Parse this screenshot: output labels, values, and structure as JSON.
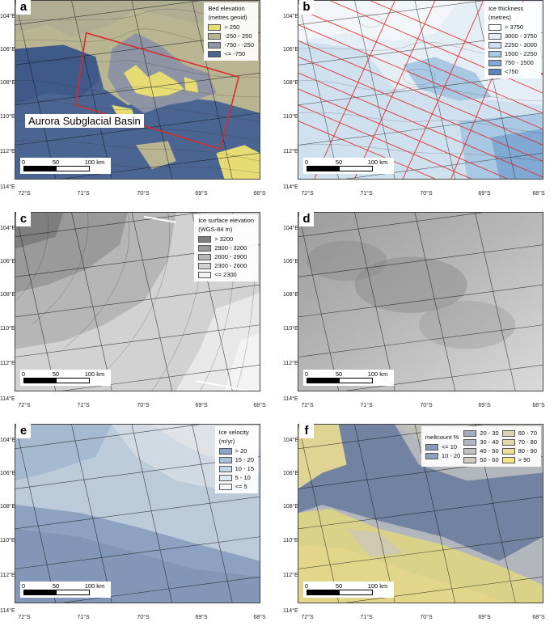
{
  "longitudes": [
    "104°E",
    "106°E",
    "108°E",
    "110°E",
    "112°E",
    "114°E"
  ],
  "latitudes": [
    "72°S",
    "71°S",
    "70°S",
    "69°S",
    "68°S"
  ],
  "scale": {
    "labels": [
      "0",
      "50",
      "100 km"
    ]
  },
  "panels": [
    {
      "id": "a",
      "label": "a",
      "legend_title": [
        "Bed elevation",
        "(metres geoid)"
      ],
      "legend": [
        {
          "label": "> 250",
          "color": "#e6dc73"
        },
        {
          "label": "-250 - 250",
          "color": "#b9b492"
        },
        {
          "label": "-750 - -250",
          "color": "#8e94a3"
        },
        {
          "label": "<= -750",
          "color": "#4b6593"
        }
      ],
      "annotation": "Aurora Subglacial Basin"
    },
    {
      "id": "b",
      "label": "b",
      "legend_title": [
        "Ice thickness",
        "(metres)"
      ],
      "legend": [
        {
          "label": "> 3750",
          "color": "#ffffff"
        },
        {
          "label": "3000 - 3750",
          "color": "#e6eef5"
        },
        {
          "label": "2250 - 3000",
          "color": "#cfe0ee"
        },
        {
          "label": "1500 - 2250",
          "color": "#a9c8e3"
        },
        {
          "label": "750 - 1500",
          "color": "#80aad4"
        },
        {
          "label": "<750",
          "color": "#5b86bd"
        }
      ]
    },
    {
      "id": "c",
      "label": "c",
      "legend_title": [
        "Ice surface elevation",
        "(WGS-84 m)"
      ],
      "legend": [
        {
          "label": "> 3200",
          "color": "#7e7e7e"
        },
        {
          "label": "2900 - 3200",
          "color": "#9a9a9a"
        },
        {
          "label": "2600 - 2900",
          "color": "#b6b6b6"
        },
        {
          "label": "2300 - 2600",
          "color": "#d2d2d2"
        },
        {
          "label": "<= 2300",
          "color": "#f3f3f3"
        }
      ]
    },
    {
      "id": "d",
      "label": "d"
    },
    {
      "id": "e",
      "label": "e",
      "legend_title": [
        "Ice velocity",
        "(m/yr)"
      ],
      "legend": [
        {
          "label": "> 20",
          "color": "#8aa4c8"
        },
        {
          "label": "15 - 20",
          "color": "#a8c1dc"
        },
        {
          "label": "10 - 15",
          "color": "#c4d6e8"
        },
        {
          "label": "5 - 10",
          "color": "#dde8f2"
        },
        {
          "label": "<= 5",
          "color": "#f6f8fb"
        }
      ]
    },
    {
      "id": "f",
      "label": "f",
      "legend_title": [
        "meltcount %"
      ],
      "legend_col1": [
        {
          "label": "<= 10",
          "color": "#8a9ab8"
        },
        {
          "label": "10 - 20",
          "color": "#8fa0bf"
        }
      ],
      "legend_col2": [
        {
          "label": "20 - 30",
          "color": "#a4acbf"
        },
        {
          "label": "30 - 40",
          "color": "#b2b6c0"
        },
        {
          "label": "40 - 50",
          "color": "#c2c2c0"
        },
        {
          "label": "50 - 60",
          "color": "#cfcbbe"
        }
      ],
      "legend_col3": [
        {
          "label": "60 - 70",
          "color": "#d9d2b5"
        },
        {
          "label": "70 - 80",
          "color": "#e2d9a8"
        },
        {
          "label": "80 - 90",
          "color": "#ebde96"
        },
        {
          "label": "> 90",
          "color": "#f3e486"
        }
      ]
    }
  ]
}
